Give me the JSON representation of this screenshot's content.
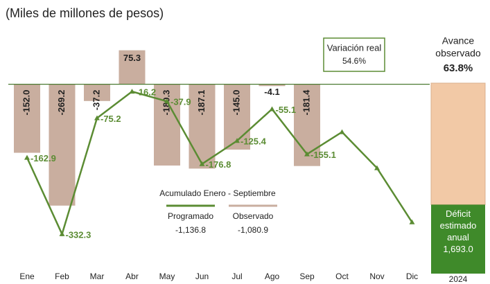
{
  "chart_data": {
    "type": "bar",
    "subtitle": "(Miles de millones de pesos)",
    "categories": [
      "Ene",
      "Feb",
      "Mar",
      "Abr",
      "May",
      "Jun",
      "Jul",
      "Ago",
      "Sep",
      "Oct",
      "Nov",
      "Dic"
    ],
    "ylim": [
      -420,
      110
    ],
    "series": [
      {
        "name": "Observado",
        "type": "bar",
        "color": "#c9ae9f",
        "values": [
          -152.0,
          -269.2,
          -37.2,
          75.3,
          -180.3,
          -187.1,
          -145.0,
          -4.1,
          -181.4,
          null,
          null,
          null
        ],
        "value_labels": [
          "-152.0",
          "-269.2",
          "-37.2",
          "75.3",
          "-180.3",
          "-187.1",
          "-145.0",
          "-4.1",
          "-181.4",
          null,
          null,
          null
        ],
        "total": {
          "value": -1080.9,
          "label": "-1,080.9"
        }
      },
      {
        "name": "Programado",
        "type": "line",
        "color": "#5b8c33",
        "values": [
          -162.9,
          -332.3,
          -75.2,
          -16.2,
          -37.9,
          -176.8,
          -125.4,
          -55.1,
          -155.1,
          -106,
          -186,
          -306
        ],
        "value_labels": [
          "-162.9",
          "-332.3",
          "-75.2",
          "-16.2",
          "-37.9",
          "-176.8",
          "-125.4",
          "-55.1",
          "-155.1",
          null,
          null,
          null
        ],
        "total": {
          "value": -1136.8,
          "label": "-1,136.8"
        }
      }
    ],
    "legend_title": "Acumulado Enero - Septiembre",
    "variation": {
      "label": "Variación real",
      "value": 54.6,
      "value_label": "54.6%"
    },
    "annual": {
      "title_lines": [
        "Avance",
        "observado"
      ],
      "progress": {
        "value": 63.8,
        "label": "63.8%"
      },
      "deficit_lines": [
        "Déficit",
        "estimado",
        "anual"
      ],
      "deficit": {
        "value": 1693.0,
        "label": "1,693.0"
      },
      "year": "2024"
    }
  }
}
